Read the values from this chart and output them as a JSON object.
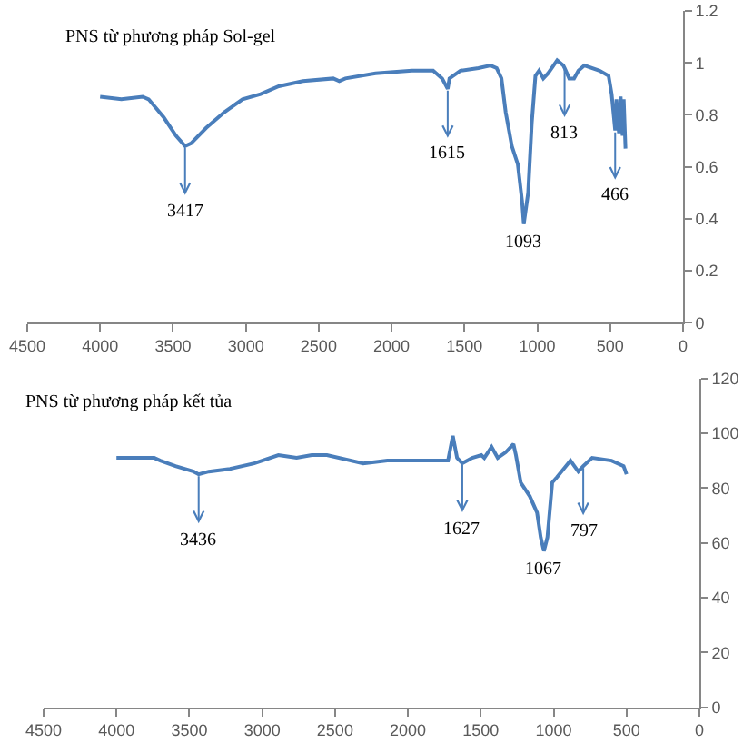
{
  "chart_data": [
    {
      "type": "line",
      "title": "PNS từ phương pháp Sol-gel",
      "color": "#4a7ebb",
      "x": [
        4000,
        3854,
        3708,
        3667,
        3563,
        3480,
        3417,
        3376,
        3272,
        3148,
        3023,
        2899,
        2774,
        2608,
        2400,
        2359,
        2317,
        2110,
        1860,
        1715,
        1653,
        1615,
        1603,
        1528,
        1404,
        1321,
        1279,
        1246,
        1217,
        1175,
        1134,
        1105,
        1093,
        1063,
        1038,
        1013,
        988,
        959,
        926,
        864,
        822,
        813,
        781,
        748,
        718,
        677,
        573,
        511,
        490,
        466,
        457,
        440,
        428,
        415,
        407,
        395
      ],
      "values": [
        0.87,
        0.86,
        0.87,
        0.86,
        0.79,
        0.72,
        0.68,
        0.69,
        0.75,
        0.81,
        0.86,
        0.88,
        0.91,
        0.93,
        0.94,
        0.93,
        0.94,
        0.96,
        0.97,
        0.97,
        0.94,
        0.9,
        0.94,
        0.97,
        0.98,
        0.99,
        0.98,
        0.94,
        0.81,
        0.68,
        0.61,
        0.47,
        0.38,
        0.5,
        0.77,
        0.95,
        0.97,
        0.94,
        0.96,
        1.01,
        0.99,
        0.98,
        0.94,
        0.94,
        0.97,
        0.99,
        0.97,
        0.95,
        0.88,
        0.74,
        0.86,
        0.73,
        0.87,
        0.72,
        0.86,
        0.67
      ],
      "xlim": [
        4500,
        0
      ],
      "xticks": [
        4500,
        4000,
        3500,
        3000,
        2500,
        2000,
        1500,
        1000,
        500,
        0
      ],
      "ylim": [
        0,
        1.2
      ],
      "yticks": [
        0,
        0.2,
        0.4,
        0.6,
        0.8,
        1,
        1.2
      ],
      "grid": false,
      "annotations": [
        {
          "text": "3417",
          "x": 3417,
          "y": 0.68
        },
        {
          "text": "1615",
          "x": 1615,
          "y": 0.9
        },
        {
          "text": "1093",
          "x": 1093,
          "y": 0.38
        },
        {
          "text": "813",
          "x": 813,
          "y": 0.98
        },
        {
          "text": "466",
          "x": 466,
          "y": 0.74
        }
      ]
    },
    {
      "type": "line",
      "title": "PNS từ phương pháp kết tủa",
      "color": "#4a7ebb",
      "x": [
        4000,
        3886,
        3741,
        3699,
        3595,
        3470,
        3436,
        3367,
        3221,
        3055,
        2889,
        2764,
        2660,
        2556,
        2307,
        2141,
        1891,
        1725,
        1692,
        1663,
        1627,
        1559,
        1496,
        1476,
        1426,
        1384,
        1330,
        1276,
        1259,
        1226,
        1164,
        1114,
        1089,
        1067,
        1043,
        1010,
        977,
        885,
        831,
        797,
        736,
        603,
        520,
        500
      ],
      "values": [
        91,
        91,
        91,
        90,
        88,
        86,
        85,
        86,
        87,
        89,
        92,
        91,
        92,
        92,
        89,
        90,
        90,
        90,
        99,
        91,
        89,
        91,
        92,
        91,
        95,
        91,
        93,
        96,
        92,
        82,
        77,
        71,
        62,
        57,
        62,
        82,
        84,
        90,
        86,
        88,
        91,
        90,
        88,
        85
      ],
      "xlim": [
        4500,
        0
      ],
      "xticks": [
        4500,
        4000,
        3500,
        3000,
        2500,
        2000,
        1500,
        1000,
        500,
        0
      ],
      "ylim": [
        0,
        120
      ],
      "yticks": [
        0,
        20,
        40,
        60,
        80,
        100,
        120
      ],
      "grid": false,
      "annotations": [
        {
          "text": "3436",
          "x": 3436,
          "y": 85
        },
        {
          "text": "1627",
          "x": 1627,
          "y": 89
        },
        {
          "text": "1067",
          "x": 1067,
          "y": 57
        },
        {
          "text": "797",
          "x": 797,
          "y": 88
        }
      ]
    }
  ]
}
